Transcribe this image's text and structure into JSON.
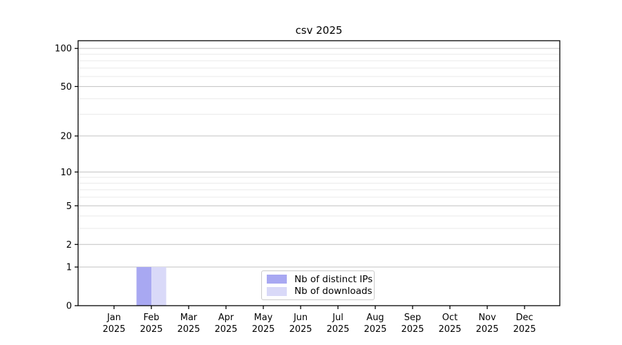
{
  "chart_data": {
    "type": "bar",
    "title": "csv 2025",
    "categories": [
      "Jan 2025",
      "Feb 2025",
      "Mar 2025",
      "Apr 2025",
      "May 2025",
      "Jun 2025",
      "Jul 2025",
      "Aug 2025",
      "Sep 2025",
      "Oct 2025",
      "Nov 2025",
      "Dec 2025"
    ],
    "series": [
      {
        "name": "Nb of distinct IPs",
        "color": "#a8a8f2",
        "values": [
          0,
          1,
          0,
          0,
          0,
          0,
          0,
          0,
          0,
          0,
          0,
          0
        ]
      },
      {
        "name": "Nb of downloads",
        "color": "#d9d9f8",
        "values": [
          0,
          1,
          0,
          0,
          0,
          0,
          0,
          0,
          0,
          0,
          0,
          0
        ]
      }
    ],
    "xlabel": "",
    "ylabel": "",
    "yscale": "log1p",
    "ylim": [
      0,
      115
    ],
    "y_major_ticks": [
      0,
      1,
      2,
      5,
      10,
      20,
      50,
      100
    ],
    "y_minor_gridlines": [
      3,
      4,
      6,
      7,
      8,
      9,
      30,
      40,
      60,
      70,
      80,
      90
    ],
    "grid": "horizontal-only",
    "legend_position": "lower center",
    "colors": {
      "axis": "#000000",
      "major_grid": "#c0c0c0",
      "minor_grid": "#eaeaea",
      "background": "#ffffff"
    }
  }
}
